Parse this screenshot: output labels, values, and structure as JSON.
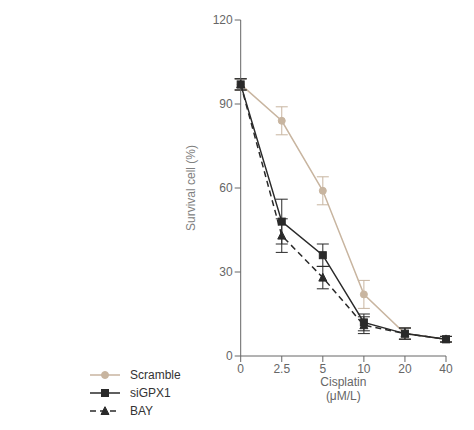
{
  "chart_data": {
    "type": "line",
    "categories": [
      "0",
      "2.5",
      "5",
      "10",
      "20",
      "40"
    ],
    "series": [
      {
        "name": "Scramble",
        "color": "#c8b5a0",
        "marker": "circle",
        "line_style": "solid",
        "values": [
          97,
          84,
          59,
          22,
          8,
          6
        ],
        "errors": [
          2,
          5,
          5,
          5,
          2,
          1
        ]
      },
      {
        "name": "siGPX1",
        "color": "#2a2a2a",
        "marker": "square",
        "line_style": "solid",
        "values": [
          97,
          48,
          36,
          12,
          8,
          6
        ],
        "errors": [
          2,
          8,
          4,
          3,
          2,
          1
        ]
      },
      {
        "name": "BAY",
        "color": "#2a2a2a",
        "marker": "triangle",
        "line_style": "dashed",
        "values": [
          97,
          43,
          28,
          11,
          8,
          6
        ],
        "errors": [
          2,
          6,
          4,
          3,
          2,
          1
        ]
      }
    ],
    "xlabel": "Cisplatin\n(μM/L)",
    "ylabel": "Survival cell (%)",
    "ylim": [
      0,
      120
    ],
    "yticks": [
      0,
      30,
      60,
      90,
      120
    ],
    "grid": false,
    "legend": "bottom"
  }
}
